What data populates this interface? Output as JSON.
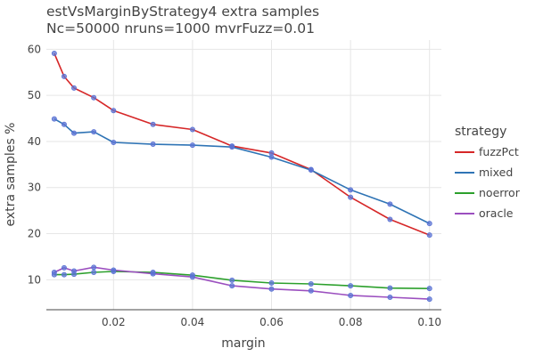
{
  "chart_data": {
    "type": "line",
    "title": "estVsMarginByStrategy4 extra samples",
    "subtitle": "Nc=50000 nruns=1000 mvrFuzz=0.01",
    "xlabel": "margin",
    "ylabel": "extra samples %",
    "xlim": [
      0.003,
      0.103
    ],
    "ylim": [
      3.5,
      62
    ],
    "x_ticks": [
      "0.02",
      "0.04",
      "0.06",
      "0.08",
      "0.10"
    ],
    "y_ticks": [
      "10",
      "20",
      "30",
      "40",
      "50",
      "60"
    ],
    "grid": true,
    "legend_title": "strategy",
    "legend_position": "right",
    "marker_color": "#5b73d4",
    "x": [
      0.005,
      0.0075,
      0.01,
      0.015,
      0.02,
      0.03,
      0.04,
      0.05,
      0.06,
      0.07,
      0.08,
      0.09,
      0.1
    ],
    "series": [
      {
        "name": "fuzzPct",
        "color": "#d62728",
        "values": [
          59.1,
          54.1,
          51.6,
          49.5,
          46.7,
          43.7,
          42.6,
          39.0,
          37.5,
          33.9,
          27.9,
          23.1,
          19.7
        ]
      },
      {
        "name": "mixed",
        "color": "#2f74b5",
        "values": [
          44.9,
          43.7,
          41.8,
          42.1,
          39.8,
          39.4,
          39.2,
          38.8,
          36.6,
          33.8,
          29.5,
          26.4,
          22.2
        ]
      },
      {
        "name": "noerror",
        "color": "#2ca02c",
        "values": [
          11.1,
          11.1,
          11.2,
          11.6,
          11.8,
          11.6,
          11.0,
          9.9,
          9.3,
          9.1,
          8.7,
          8.2,
          8.1
        ]
      },
      {
        "name": "oracle",
        "color": "#9b4fbf",
        "values": [
          11.6,
          12.6,
          11.9,
          12.7,
          12.1,
          11.3,
          10.6,
          8.7,
          8.0,
          7.6,
          6.6,
          6.2,
          5.8
        ]
      }
    ]
  }
}
